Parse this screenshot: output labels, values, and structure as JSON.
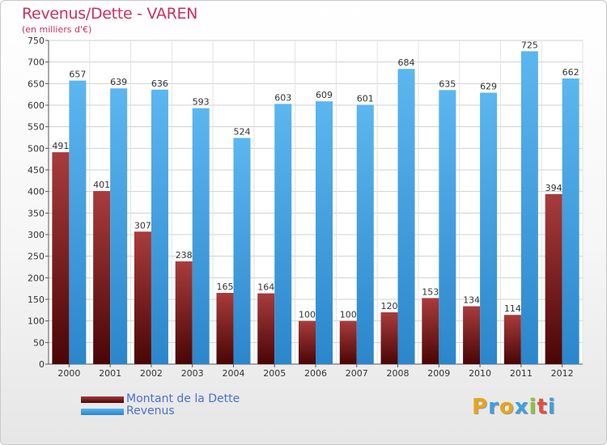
{
  "chart_data": {
    "type": "bar",
    "title": "Revenus/Dette - VAREN",
    "subtitle": "(en milliers d'€)",
    "categories": [
      "2000",
      "2001",
      "2002",
      "2003",
      "2004",
      "2005",
      "2006",
      "2007",
      "2008",
      "2009",
      "2010",
      "2011",
      "2012"
    ],
    "series": [
      {
        "name": "Montant de la Dette",
        "color": "#7a1a1a",
        "values": [
          491,
          401,
          307,
          238,
          165,
          164,
          100,
          100,
          120,
          153,
          134,
          114,
          394
        ]
      },
      {
        "name": "Revenus",
        "color": "#3f9fe0",
        "values": [
          657,
          639,
          636,
          593,
          524,
          603,
          609,
          601,
          684,
          635,
          629,
          725,
          662
        ]
      }
    ],
    "ylim": [
      0,
      750
    ],
    "yticks": [
      0,
      50,
      100,
      150,
      200,
      250,
      300,
      350,
      400,
      450,
      500,
      550,
      600,
      650,
      700,
      750
    ],
    "grid": true,
    "legend": "bottom-left"
  },
  "logo": {
    "letters": [
      "P",
      "r",
      "o",
      "x",
      "i",
      "t",
      "i"
    ],
    "colors": [
      "#e8a51c",
      "#3fa0e0",
      "#e8a51c",
      "#3fa0e0",
      "#8ac43f",
      "#e0503f",
      "#3fa0e0"
    ]
  }
}
